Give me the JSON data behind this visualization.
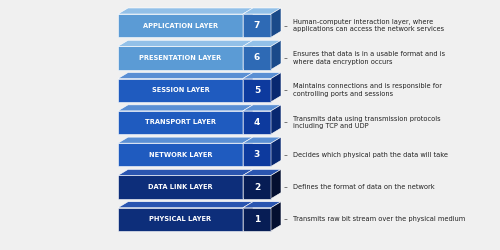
{
  "layers": [
    {
      "name": "APPLICATION LAYER",
      "number": "7",
      "description": "Human-computer interaction layer, where\napplications can access the network services",
      "face_color": "#5b9bd5",
      "top_color": "#92c0e8",
      "side_color": "#2e6ab5",
      "num_face_color": "#2e6ab5",
      "num_side_color": "#1a4a8a"
    },
    {
      "name": "PRESENTATION LAYER",
      "number": "6",
      "description": "Ensures that data is in a usable format and is\nwhere data encryption occurs",
      "face_color": "#5b9bd5",
      "top_color": "#92c0e8",
      "side_color": "#2e6ab5",
      "num_face_color": "#2e6ab5",
      "num_side_color": "#1a4a8a"
    },
    {
      "name": "SESSION LAYER",
      "number": "5",
      "description": "Maintains connections and is responsible for\ncontrolling ports and sessions",
      "face_color": "#1f5bbf",
      "top_color": "#5a8fd4",
      "side_color": "#0d3a9e",
      "num_face_color": "#0d3a9e",
      "num_side_color": "#082870"
    },
    {
      "name": "TRANSPORT LAYER",
      "number": "4",
      "description": "Transmits data using transmission protocols\nincluding TCP and UDP",
      "face_color": "#1f5bbf",
      "top_color": "#5a8fd4",
      "side_color": "#0d3a9e",
      "num_face_color": "#0d3a9e",
      "num_side_color": "#082870"
    },
    {
      "name": "NETWORK LAYER",
      "number": "3",
      "description": "Decides which physical path the data will take",
      "face_color": "#1f5bbf",
      "top_color": "#5a8fd4",
      "side_color": "#0d3a9e",
      "num_face_color": "#0d3a9e",
      "num_side_color": "#082870"
    },
    {
      "name": "DATA LINK LAYER",
      "number": "2",
      "description": "Defines the format of data on the network",
      "face_color": "#0d2e7a",
      "top_color": "#2a55b0",
      "side_color": "#071d55",
      "num_face_color": "#071d55",
      "num_side_color": "#040f30"
    },
    {
      "name": "PHYSICAL LAYER",
      "number": "1",
      "description": "Transmits raw bit stream over the physical medium",
      "face_color": "#0d2e7a",
      "top_color": "#2a55b0",
      "side_color": "#071d55",
      "num_face_color": "#071d55",
      "num_side_color": "#040f30"
    }
  ],
  "background_color": "#f0f0f0",
  "text_color": "#222222",
  "dash_color": "#777777",
  "label_font_size": 4.8,
  "desc_font_size": 4.8,
  "number_font_size": 6.5
}
